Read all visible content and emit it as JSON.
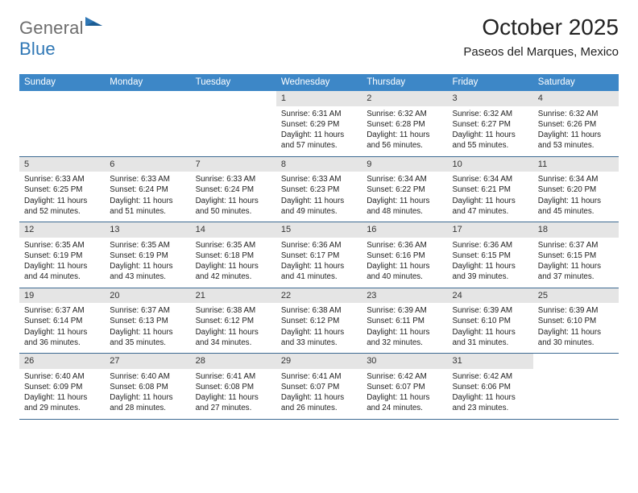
{
  "brand": {
    "part1": "General",
    "part2": "Blue"
  },
  "title": "October 2025",
  "location": "Paseos del Marques, Mexico",
  "colors": {
    "header_bg": "#3d87c7",
    "header_text": "#ffffff",
    "daybar_bg": "#e5e5e5",
    "rule": "#3d6a92",
    "brand_grey": "#6d6d6d",
    "brand_blue": "#2f77b5"
  },
  "weekdays": [
    "Sunday",
    "Monday",
    "Tuesday",
    "Wednesday",
    "Thursday",
    "Friday",
    "Saturday"
  ],
  "labels": {
    "sunrise": "Sunrise:",
    "sunset": "Sunset:",
    "daylight": "Daylight:"
  },
  "weeks": [
    [
      null,
      null,
      null,
      {
        "n": "1",
        "sr": "6:31 AM",
        "ss": "6:29 PM",
        "dl": "11 hours and 57 minutes."
      },
      {
        "n": "2",
        "sr": "6:32 AM",
        "ss": "6:28 PM",
        "dl": "11 hours and 56 minutes."
      },
      {
        "n": "3",
        "sr": "6:32 AM",
        "ss": "6:27 PM",
        "dl": "11 hours and 55 minutes."
      },
      {
        "n": "4",
        "sr": "6:32 AM",
        "ss": "6:26 PM",
        "dl": "11 hours and 53 minutes."
      }
    ],
    [
      {
        "n": "5",
        "sr": "6:33 AM",
        "ss": "6:25 PM",
        "dl": "11 hours and 52 minutes."
      },
      {
        "n": "6",
        "sr": "6:33 AM",
        "ss": "6:24 PM",
        "dl": "11 hours and 51 minutes."
      },
      {
        "n": "7",
        "sr": "6:33 AM",
        "ss": "6:24 PM",
        "dl": "11 hours and 50 minutes."
      },
      {
        "n": "8",
        "sr": "6:33 AM",
        "ss": "6:23 PM",
        "dl": "11 hours and 49 minutes."
      },
      {
        "n": "9",
        "sr": "6:34 AM",
        "ss": "6:22 PM",
        "dl": "11 hours and 48 minutes."
      },
      {
        "n": "10",
        "sr": "6:34 AM",
        "ss": "6:21 PM",
        "dl": "11 hours and 47 minutes."
      },
      {
        "n": "11",
        "sr": "6:34 AM",
        "ss": "6:20 PM",
        "dl": "11 hours and 45 minutes."
      }
    ],
    [
      {
        "n": "12",
        "sr": "6:35 AM",
        "ss": "6:19 PM",
        "dl": "11 hours and 44 minutes."
      },
      {
        "n": "13",
        "sr": "6:35 AM",
        "ss": "6:19 PM",
        "dl": "11 hours and 43 minutes."
      },
      {
        "n": "14",
        "sr": "6:35 AM",
        "ss": "6:18 PM",
        "dl": "11 hours and 42 minutes."
      },
      {
        "n": "15",
        "sr": "6:36 AM",
        "ss": "6:17 PM",
        "dl": "11 hours and 41 minutes."
      },
      {
        "n": "16",
        "sr": "6:36 AM",
        "ss": "6:16 PM",
        "dl": "11 hours and 40 minutes."
      },
      {
        "n": "17",
        "sr": "6:36 AM",
        "ss": "6:15 PM",
        "dl": "11 hours and 39 minutes."
      },
      {
        "n": "18",
        "sr": "6:37 AM",
        "ss": "6:15 PM",
        "dl": "11 hours and 37 minutes."
      }
    ],
    [
      {
        "n": "19",
        "sr": "6:37 AM",
        "ss": "6:14 PM",
        "dl": "11 hours and 36 minutes."
      },
      {
        "n": "20",
        "sr": "6:37 AM",
        "ss": "6:13 PM",
        "dl": "11 hours and 35 minutes."
      },
      {
        "n": "21",
        "sr": "6:38 AM",
        "ss": "6:12 PM",
        "dl": "11 hours and 34 minutes."
      },
      {
        "n": "22",
        "sr": "6:38 AM",
        "ss": "6:12 PM",
        "dl": "11 hours and 33 minutes."
      },
      {
        "n": "23",
        "sr": "6:39 AM",
        "ss": "6:11 PM",
        "dl": "11 hours and 32 minutes."
      },
      {
        "n": "24",
        "sr": "6:39 AM",
        "ss": "6:10 PM",
        "dl": "11 hours and 31 minutes."
      },
      {
        "n": "25",
        "sr": "6:39 AM",
        "ss": "6:10 PM",
        "dl": "11 hours and 30 minutes."
      }
    ],
    [
      {
        "n": "26",
        "sr": "6:40 AM",
        "ss": "6:09 PM",
        "dl": "11 hours and 29 minutes."
      },
      {
        "n": "27",
        "sr": "6:40 AM",
        "ss": "6:08 PM",
        "dl": "11 hours and 28 minutes."
      },
      {
        "n": "28",
        "sr": "6:41 AM",
        "ss": "6:08 PM",
        "dl": "11 hours and 27 minutes."
      },
      {
        "n": "29",
        "sr": "6:41 AM",
        "ss": "6:07 PM",
        "dl": "11 hours and 26 minutes."
      },
      {
        "n": "30",
        "sr": "6:42 AM",
        "ss": "6:07 PM",
        "dl": "11 hours and 24 minutes."
      },
      {
        "n": "31",
        "sr": "6:42 AM",
        "ss": "6:06 PM",
        "dl": "11 hours and 23 minutes."
      },
      null
    ]
  ]
}
